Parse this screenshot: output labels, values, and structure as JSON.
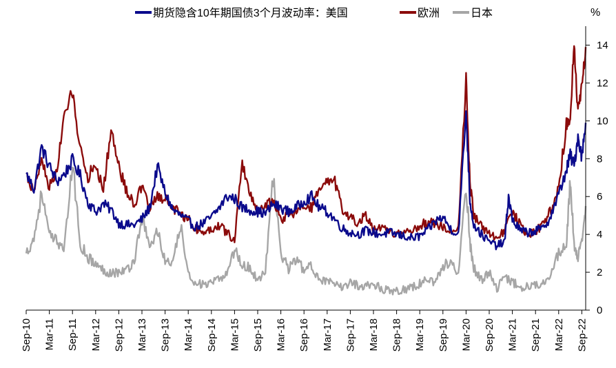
{
  "chart_data": {
    "type": "line",
    "unit_label": "%",
    "legend_position": "top",
    "grid": false,
    "ylim": [
      0,
      15
    ],
    "y_ticks": [
      0,
      2,
      4,
      6,
      8,
      10,
      12,
      14
    ],
    "x_range": [
      "2010-09",
      "2022-10"
    ],
    "x_tick_labels": [
      "Sep-10",
      "Mar-11",
      "Sep-11",
      "Mar-12",
      "Sep-12",
      "Mar-13",
      "Sep-13",
      "Mar-14",
      "Sep-14",
      "Mar-15",
      "Sep-15",
      "Mar-16",
      "Sep-16",
      "Mar-17",
      "Sep-17",
      "Mar-18",
      "Sep-18",
      "Mar-19",
      "Sep-19",
      "Mar-20",
      "Sep-20",
      "Mar-21",
      "Sep-21",
      "Mar-22",
      "Sep-22"
    ],
    "series": [
      {
        "name": "期货隐含10年期国债3个月波动率：美国",
        "color": "#0a0a8c",
        "x": [
          "2010-09",
          "2010-11",
          "2011-01",
          "2011-03",
          "2011-05",
          "2011-07",
          "2011-09",
          "2011-11",
          "2012-01",
          "2012-03",
          "2012-05",
          "2012-07",
          "2012-09",
          "2012-11",
          "2013-01",
          "2013-03",
          "2013-05",
          "2013-07",
          "2013-09",
          "2013-11",
          "2014-01",
          "2014-03",
          "2014-05",
          "2014-07",
          "2014-09",
          "2014-11",
          "2015-01",
          "2015-03",
          "2015-05",
          "2015-07",
          "2015-09",
          "2015-11",
          "2016-01",
          "2016-03",
          "2016-05",
          "2016-07",
          "2016-09",
          "2016-11",
          "2017-01",
          "2017-03",
          "2017-05",
          "2017-07",
          "2017-09",
          "2017-11",
          "2018-01",
          "2018-03",
          "2018-05",
          "2018-07",
          "2018-09",
          "2018-11",
          "2019-01",
          "2019-03",
          "2019-05",
          "2019-07",
          "2019-09",
          "2019-11",
          "2020-01",
          "2020-03",
          "2020-04",
          "2020-05",
          "2020-07",
          "2020-09",
          "2020-11",
          "2021-01",
          "2021-02",
          "2021-03",
          "2021-05",
          "2021-07",
          "2021-09",
          "2021-11",
          "2022-01",
          "2022-03",
          "2022-05",
          "2022-06",
          "2022-07",
          "2022-08",
          "2022-09",
          "2022-10"
        ],
        "values": [
          7.2,
          6.4,
          8.6,
          7.6,
          6.8,
          7.2,
          7.9,
          7.1,
          5.7,
          5.2,
          5.6,
          5.3,
          4.6,
          4.5,
          4.5,
          4.8,
          5.4,
          7.6,
          6.2,
          5.3,
          5.0,
          4.7,
          4.4,
          4.6,
          4.9,
          5.4,
          6.0,
          5.9,
          5.4,
          5.3,
          5.2,
          5.1,
          5.6,
          5.4,
          5.2,
          5.4,
          5.8,
          6.0,
          5.4,
          5.2,
          4.8,
          4.3,
          4.1,
          4.0,
          4.2,
          4.1,
          4.0,
          4.1,
          4.0,
          3.9,
          3.8,
          3.9,
          4.2,
          4.7,
          4.9,
          4.3,
          4.0,
          10.5,
          5.8,
          4.5,
          4.0,
          3.6,
          3.4,
          3.6,
          6.0,
          4.8,
          4.2,
          4.1,
          4.2,
          4.3,
          5.0,
          6.1,
          7.4,
          8.2,
          7.6,
          9.2,
          8.1,
          9.9
        ]
      },
      {
        "name": "欧洲",
        "color": "#8b0b0b",
        "x": [
          "2010-09",
          "2010-11",
          "2011-01",
          "2011-03",
          "2011-05",
          "2011-07",
          "2011-09",
          "2011-11",
          "2012-01",
          "2012-03",
          "2012-05",
          "2012-07",
          "2012-09",
          "2012-11",
          "2013-01",
          "2013-03",
          "2013-05",
          "2013-07",
          "2013-09",
          "2013-11",
          "2014-01",
          "2014-03",
          "2014-05",
          "2014-07",
          "2014-09",
          "2014-11",
          "2015-01",
          "2015-03",
          "2015-05",
          "2015-07",
          "2015-09",
          "2015-11",
          "2016-01",
          "2016-03",
          "2016-05",
          "2016-07",
          "2016-09",
          "2016-11",
          "2017-01",
          "2017-03",
          "2017-05",
          "2017-07",
          "2017-09",
          "2017-11",
          "2018-01",
          "2018-03",
          "2018-05",
          "2018-07",
          "2018-09",
          "2018-11",
          "2019-01",
          "2019-03",
          "2019-05",
          "2019-07",
          "2019-09",
          "2019-11",
          "2020-01",
          "2020-03",
          "2020-04",
          "2020-05",
          "2020-07",
          "2020-09",
          "2020-11",
          "2021-01",
          "2021-03",
          "2021-05",
          "2021-07",
          "2021-09",
          "2021-11",
          "2022-01",
          "2022-03",
          "2022-05",
          "2022-06",
          "2022-07",
          "2022-08",
          "2022-09",
          "2022-10"
        ],
        "values": [
          7.2,
          6.2,
          8.0,
          6.5,
          7.4,
          10.4,
          11.5,
          8.6,
          7.0,
          7.8,
          6.3,
          9.6,
          7.6,
          6.3,
          5.6,
          6.5,
          5.4,
          6.0,
          5.9,
          5.4,
          5.1,
          4.8,
          4.3,
          4.1,
          4.3,
          4.5,
          4.1,
          3.7,
          7.8,
          6.1,
          5.3,
          5.5,
          5.8,
          4.8,
          5.0,
          5.2,
          5.5,
          5.4,
          6.4,
          6.7,
          6.8,
          5.2,
          4.9,
          4.6,
          5.0,
          4.2,
          4.3,
          4.2,
          4.0,
          4.1,
          4.2,
          4.5,
          4.6,
          4.6,
          4.4,
          4.2,
          4.3,
          12.3,
          6.8,
          5.0,
          4.4,
          4.0,
          3.9,
          4.2,
          5.2,
          4.5,
          4.0,
          4.2,
          4.5,
          5.3,
          6.5,
          9.8,
          10.2,
          14.1,
          10.4,
          11.8,
          13.9
        ]
      },
      {
        "name": "日本",
        "color": "#a6a6a6",
        "x": [
          "2010-09",
          "2010-11",
          "2011-01",
          "2011-03",
          "2011-05",
          "2011-07",
          "2011-09",
          "2011-11",
          "2012-01",
          "2012-03",
          "2012-05",
          "2012-07",
          "2012-09",
          "2012-11",
          "2013-01",
          "2013-03",
          "2013-05",
          "2013-07",
          "2013-09",
          "2013-11",
          "2014-01",
          "2014-03",
          "2014-05",
          "2014-07",
          "2014-09",
          "2014-11",
          "2015-01",
          "2015-03",
          "2015-05",
          "2015-07",
          "2015-09",
          "2015-11",
          "2016-01",
          "2016-03",
          "2016-05",
          "2016-07",
          "2016-09",
          "2016-11",
          "2017-01",
          "2017-03",
          "2017-05",
          "2017-07",
          "2017-09",
          "2017-11",
          "2018-01",
          "2018-03",
          "2018-05",
          "2018-07",
          "2018-09",
          "2018-11",
          "2019-01",
          "2019-03",
          "2019-05",
          "2019-07",
          "2019-09",
          "2019-11",
          "2020-01",
          "2020-03",
          "2020-04",
          "2020-05",
          "2020-07",
          "2020-09",
          "2020-11",
          "2021-01",
          "2021-03",
          "2021-05",
          "2021-07",
          "2021-09",
          "2021-11",
          "2022-01",
          "2022-03",
          "2022-05",
          "2022-06",
          "2022-07",
          "2022-08",
          "2022-09",
          "2022-10"
        ],
        "values": [
          3.0,
          3.8,
          6.2,
          3.9,
          3.6,
          3.4,
          7.8,
          3.5,
          2.8,
          2.4,
          2.1,
          2.0,
          2.0,
          2.1,
          2.6,
          4.9,
          3.3,
          4.2,
          2.6,
          2.4,
          4.5,
          1.8,
          1.5,
          1.3,
          1.4,
          1.6,
          2.0,
          3.2,
          2.4,
          2.2,
          1.6,
          2.1,
          7.0,
          3.0,
          2.2,
          2.7,
          2.1,
          2.3,
          1.7,
          1.5,
          1.3,
          1.2,
          1.5,
          1.3,
          1.3,
          1.4,
          1.1,
          1.1,
          1.0,
          1.1,
          1.2,
          1.4,
          1.6,
          1.5,
          2.3,
          2.6,
          1.8,
          6.5,
          3.6,
          2.2,
          1.6,
          2.0,
          1.1,
          1.8,
          1.5,
          1.2,
          1.3,
          1.3,
          1.5,
          2.0,
          3.0,
          3.4,
          6.8,
          3.5,
          2.8,
          3.5,
          5.5
        ]
      }
    ]
  }
}
